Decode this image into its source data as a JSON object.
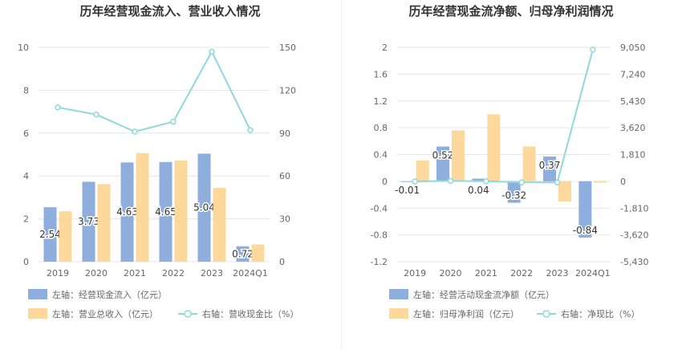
{
  "chart_data": [
    {
      "type": "bar",
      "title": "历年经营现金流入、营业收入情况",
      "categories": [
        "2019",
        "2020",
        "2021",
        "2022",
        "2023",
        "2024Q1"
      ],
      "left_axis": {
        "min": 0,
        "max": 10,
        "step": 2,
        "ticks": [
          "0",
          "2",
          "4",
          "6",
          "8",
          "10"
        ]
      },
      "right_axis": {
        "min": 0,
        "max": 150,
        "step": 30,
        "ticks": [
          "0",
          "30",
          "60",
          "90",
          "120",
          "150"
        ]
      },
      "series": [
        {
          "name": "左轴：经营现金流入（亿元）",
          "kind": "bar",
          "axis": "left",
          "color": "#8eaedd",
          "values": [
            2.54,
            3.73,
            4.63,
            4.65,
            5.04,
            0.72
          ],
          "labels": [
            "2.54",
            "3.73",
            "4.63",
            "4.65",
            "5.04",
            "0.72"
          ]
        },
        {
          "name": "左轴：营业总收入（亿元）",
          "kind": "bar",
          "axis": "left",
          "color": "#fdd89c",
          "values": [
            2.35,
            3.62,
            5.07,
            4.72,
            3.44,
            0.8
          ]
        },
        {
          "name": "右轴：营收现金比（%）",
          "kind": "line",
          "axis": "right",
          "color": "#8fd8dc",
          "values": [
            108,
            103,
            91,
            98,
            147,
            92
          ]
        }
      ]
    },
    {
      "type": "bar",
      "title": "历年经营现金流净额、归母净利润情况",
      "categories": [
        "2019",
        "2020",
        "2021",
        "2022",
        "2023",
        "2024Q1"
      ],
      "left_axis": {
        "min": -1.2,
        "max": 2,
        "step": 0.4,
        "ticks": [
          "-1.2",
          "-0.8",
          "-0.4",
          "0",
          "0.4",
          "0.8",
          "1.2",
          "1.6",
          "2"
        ]
      },
      "right_axis": {
        "min": -5430,
        "max": 9050,
        "step": 1810,
        "ticks": [
          "-5,430",
          "-3,620",
          "-1,810",
          "0",
          "1,810",
          "3,620",
          "5,430",
          "7,240",
          "9,050"
        ]
      },
      "series": [
        {
          "name": "左轴：经营活动现金流净额（亿元）",
          "kind": "bar",
          "axis": "left",
          "color": "#8eaedd",
          "values": [
            -0.01,
            0.52,
            0.04,
            -0.32,
            0.37,
            -0.84
          ],
          "labels": [
            "-0.01",
            "0.52",
            "0.04",
            "-0.32",
            "0.37",
            "-0.84"
          ]
        },
        {
          "name": "左轴：归母净利润（亿元）",
          "kind": "bar",
          "axis": "left",
          "color": "#fdd89c",
          "values": [
            0.31,
            0.76,
            1.0,
            0.52,
            -0.3,
            -0.02
          ]
        },
        {
          "name": "右轴：净现比（%）",
          "kind": "line",
          "axis": "right",
          "color": "#8fd8dc",
          "values": [
            -5,
            30,
            5,
            -70,
            -80,
            8900
          ]
        }
      ]
    }
  ]
}
